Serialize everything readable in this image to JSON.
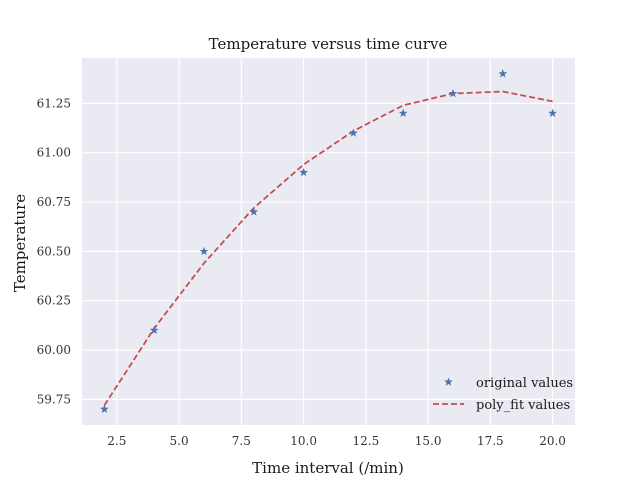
{
  "chart_data": {
    "type": "line",
    "title": "Temperature versus time curve",
    "xlabel": "Time interval (/min)",
    "ylabel": "Temperature",
    "xlim": [
      1.1,
      20.9
    ],
    "ylim": [
      59.62,
      61.48
    ],
    "x_ticks": [
      2.5,
      5.0,
      7.5,
      10.0,
      12.5,
      15.0,
      17.5,
      20.0
    ],
    "x_tick_labels": [
      "2.5",
      "5.0",
      "7.5",
      "10.0",
      "12.5",
      "15.0",
      "17.5",
      "20.0"
    ],
    "y_ticks": [
      59.75,
      60.0,
      60.25,
      60.5,
      60.75,
      61.0,
      61.25
    ],
    "y_tick_labels": [
      "59.75",
      "60.00",
      "60.25",
      "60.50",
      "60.75",
      "61.00",
      "61.25"
    ],
    "grid": true,
    "legend_position": "lower-right",
    "series": [
      {
        "name": "original values",
        "kind": "markers",
        "marker": "star",
        "color": "#4c72b0",
        "x": [
          2,
          4,
          6,
          8,
          10,
          12,
          14,
          16,
          18,
          20
        ],
        "y": [
          59.7,
          60.1,
          60.5,
          60.7,
          60.9,
          61.1,
          61.2,
          61.3,
          61.4,
          61.2
        ]
      },
      {
        "name": "poly_fit values",
        "kind": "dashed-line",
        "color": "#c44e52",
        "x": [
          2,
          4,
          6,
          8,
          10,
          12,
          14,
          16,
          18,
          20
        ],
        "y": [
          59.72,
          60.11,
          60.44,
          60.72,
          60.94,
          61.11,
          61.24,
          61.3,
          61.31,
          61.26
        ]
      }
    ]
  },
  "colors": {
    "plot_background": "#eaeaf2",
    "grid": "#ffffff",
    "page_background": "#ffffff"
  }
}
